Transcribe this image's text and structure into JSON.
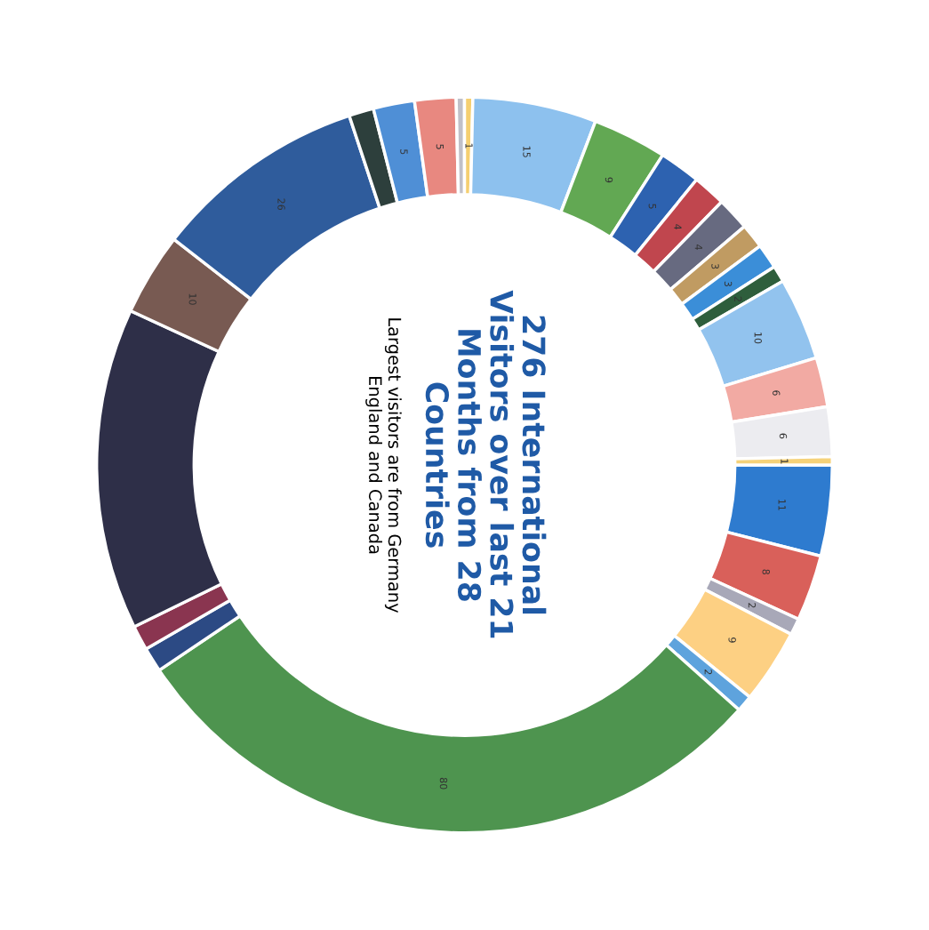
{
  "chart_data": {
    "type": "donut",
    "title": "276 International\nVisitors over last 21\nMonths from 28\nCountries",
    "subtitle": "Largest visitors are from Germany\nEngland and Canada",
    "categories": [
      null,
      null,
      null,
      null,
      null,
      null,
      null,
      null,
      null,
      null,
      null,
      null,
      null,
      null,
      null,
      null,
      null,
      null,
      null,
      null,
      null,
      null,
      null,
      null,
      null,
      null,
      null,
      null
    ],
    "values": [
      11,
      8,
      2,
      9,
      2,
      80,
      3,
      3,
      39,
      10,
      26,
      3,
      5,
      5,
      1,
      1,
      15,
      9,
      5,
      4,
      4,
      3,
      3,
      2,
      10,
      6,
      6,
      1
    ],
    "value_labels": [
      "11",
      "8",
      "2",
      "9",
      "2",
      "80",
      null,
      null,
      null,
      "10",
      "26",
      null,
      "5",
      "5",
      null,
      "1",
      "15",
      "9",
      "5",
      "4",
      "4",
      "3",
      "3",
      "2",
      "10",
      "6",
      "6",
      "1"
    ],
    "colors": [
      "#2e7bcf",
      "#d9605a",
      "#a8a8b8",
      "#fdd083",
      "#5ea3dd",
      "#4e944f",
      "#2c4a84",
      "#8a3550",
      "#2e2f48",
      "#785a52",
      "#2f5c9c",
      "#2d3f3c",
      "#4f8fd6",
      "#e88880",
      "#c0c0c8",
      "#f5cf70",
      "#8dc1ee",
      "#62a853",
      "#2d62b0",
      "#c0464e",
      "#676a80",
      "#c09b62",
      "#3b8ed8",
      "#2e5e3c",
      "#92c3ee",
      "#f2aaa3",
      "#ececf0",
      "#f5d27a"
    ]
  }
}
